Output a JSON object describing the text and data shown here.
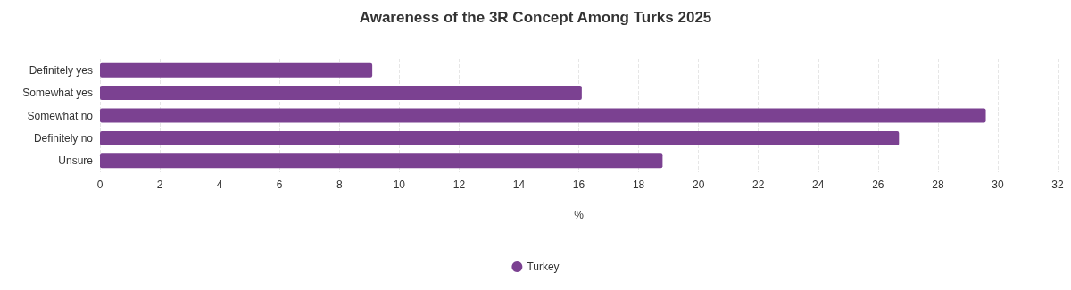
{
  "chart_data": {
    "type": "bar",
    "orientation": "horizontal",
    "title": "Awareness of the 3R Concept Among Turks 2025",
    "xlabel": "%",
    "categories": [
      "Definitely yes",
      "Somewhat yes",
      "Somewhat no",
      "Definitely no",
      "Unsure"
    ],
    "series": [
      {
        "name": "Turkey",
        "color": "#7b4191",
        "values": [
          9.1,
          16.1,
          29.6,
          26.7,
          18.8
        ]
      }
    ],
    "xlim": [
      0,
      32
    ],
    "xticks": [
      0,
      2,
      4,
      6,
      8,
      10,
      12,
      14,
      16,
      18,
      20,
      22,
      24,
      26,
      28,
      30,
      32
    ],
    "grid": "x",
    "legend": "bottom"
  }
}
